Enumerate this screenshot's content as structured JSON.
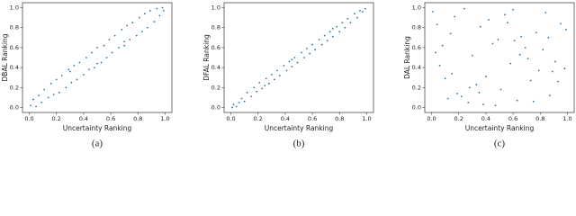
{
  "chart_data": [
    {
      "type": "scatter",
      "caption": "(a)",
      "xlabel": "Uncertainty Ranking",
      "ylabel": "DBAL Ranking",
      "color": "#1f77b4",
      "xlim": [
        -0.05,
        1.05
      ],
      "ylim": [
        -0.05,
        1.05
      ],
      "xticks": [
        {
          "value": 0,
          "label": "0.0"
        },
        {
          "value": 0.2,
          "label": "0.2"
        },
        {
          "value": 0.4,
          "label": "0.4"
        },
        {
          "value": 0.6,
          "label": "0.6"
        },
        {
          "value": 0.8,
          "label": "0.8"
        },
        {
          "value": 1,
          "label": "1.0"
        }
      ],
      "yticks": [
        {
          "value": 0,
          "label": "0.0"
        },
        {
          "value": 0.2,
          "label": "0.2"
        },
        {
          "value": 0.4,
          "label": "0.4"
        },
        {
          "value": 0.6,
          "label": "0.6"
        },
        {
          "value": 0.8,
          "label": "0.8"
        },
        {
          "value": 1,
          "label": "1.0"
        }
      ],
      "x": [
        0.01,
        0.03,
        0.05,
        0.07,
        0.09,
        0.11,
        0.14,
        0.16,
        0.18,
        0.2,
        0.22,
        0.24,
        0.27,
        0.29,
        0.31,
        0.33,
        0.35,
        0.37,
        0.4,
        0.42,
        0.44,
        0.46,
        0.48,
        0.5,
        0.53,
        0.55,
        0.57,
        0.59,
        0.61,
        0.63,
        0.66,
        0.68,
        0.7,
        0.72,
        0.74,
        0.76,
        0.79,
        0.81,
        0.83,
        0.85,
        0.87,
        0.89,
        0.92,
        0.94,
        0.96,
        0.98,
        0.99,
        0.5,
        0.3,
        0.7
      ],
      "y": [
        0.02,
        0.08,
        0.01,
        0.12,
        0.05,
        0.18,
        0.1,
        0.24,
        0.13,
        0.28,
        0.15,
        0.32,
        0.2,
        0.38,
        0.25,
        0.42,
        0.28,
        0.45,
        0.33,
        0.5,
        0.38,
        0.55,
        0.4,
        0.6,
        0.45,
        0.62,
        0.5,
        0.68,
        0.55,
        0.72,
        0.6,
        0.78,
        0.62,
        0.82,
        0.68,
        0.85,
        0.72,
        0.9,
        0.76,
        0.94,
        0.8,
        0.97,
        0.86,
        0.99,
        0.92,
        1.0,
        0.97,
        0.44,
        0.36,
        0.66
      ]
    },
    {
      "type": "scatter",
      "caption": "(b)",
      "xlabel": "Uncertainty Ranking",
      "ylabel": "DFAL Ranking",
      "color": "#1f77b4",
      "xlim": [
        -0.05,
        1.05
      ],
      "ylim": [
        -0.05,
        1.05
      ],
      "xticks": [
        {
          "value": 0,
          "label": "0.0"
        },
        {
          "value": 0.2,
          "label": "0.2"
        },
        {
          "value": 0.4,
          "label": "0.4"
        },
        {
          "value": 0.6,
          "label": "0.6"
        },
        {
          "value": 0.8,
          "label": "0.8"
        },
        {
          "value": 1,
          "label": "1.0"
        }
      ],
      "yticks": [
        {
          "value": 0,
          "label": "0.0"
        },
        {
          "value": 0.2,
          "label": "0.2"
        },
        {
          "value": 0.4,
          "label": "0.4"
        },
        {
          "value": 0.6,
          "label": "0.6"
        },
        {
          "value": 0.8,
          "label": "0.8"
        },
        {
          "value": 1,
          "label": "1.0"
        }
      ],
      "x": [
        0.01,
        0.02,
        0.04,
        0.06,
        0.08,
        0.1,
        0.12,
        0.15,
        0.17,
        0.19,
        0.21,
        0.23,
        0.26,
        0.28,
        0.3,
        0.32,
        0.34,
        0.36,
        0.39,
        0.41,
        0.43,
        0.45,
        0.47,
        0.49,
        0.52,
        0.54,
        0.56,
        0.58,
        0.6,
        0.62,
        0.65,
        0.67,
        0.69,
        0.71,
        0.73,
        0.75,
        0.78,
        0.8,
        0.82,
        0.84,
        0.86,
        0.88,
        0.91,
        0.93,
        0.95,
        0.97,
        0.99,
        0.45,
        0.25,
        0.75
      ],
      "y": [
        0.0,
        0.03,
        0.01,
        0.05,
        0.09,
        0.06,
        0.15,
        0.11,
        0.2,
        0.16,
        0.25,
        0.19,
        0.29,
        0.24,
        0.33,
        0.28,
        0.37,
        0.32,
        0.42,
        0.37,
        0.46,
        0.41,
        0.5,
        0.45,
        0.55,
        0.5,
        0.59,
        0.54,
        0.63,
        0.58,
        0.68,
        0.63,
        0.72,
        0.67,
        0.76,
        0.71,
        0.81,
        0.76,
        0.85,
        0.8,
        0.89,
        0.85,
        0.94,
        0.9,
        0.97,
        0.96,
        0.99,
        0.48,
        0.22,
        0.79
      ]
    },
    {
      "type": "scatter",
      "caption": "(c)",
      "xlabel": "Uncertainty Ranking",
      "ylabel": "DAL Ranking",
      "color": "#1f77b4",
      "xlim": [
        -0.05,
        1.05
      ],
      "ylim": [
        -0.05,
        1.05
      ],
      "xticks": [
        {
          "value": 0,
          "label": "0.0"
        },
        {
          "value": 0.2,
          "label": "0.2"
        },
        {
          "value": 0.4,
          "label": "0.4"
        },
        {
          "value": 0.6,
          "label": "0.6"
        },
        {
          "value": 0.8,
          "label": "0.8"
        },
        {
          "value": 1,
          "label": "1.0"
        }
      ],
      "yticks": [
        {
          "value": 0,
          "label": "0.0"
        },
        {
          "value": 0.2,
          "label": "0.2"
        },
        {
          "value": 0.4,
          "label": "0.4"
        },
        {
          "value": 0.6,
          "label": "0.6"
        },
        {
          "value": 0.8,
          "label": "0.8"
        },
        {
          "value": 1,
          "label": "1.0"
        }
      ],
      "x": [
        0.03,
        0.87,
        0.42,
        0.15,
        0.66,
        0.91,
        0.27,
        0.54,
        0.08,
        0.73,
        0.36,
        0.98,
        0.19,
        0.61,
        0.47,
        0.82,
        0.01,
        0.33,
        0.77,
        0.58,
        0.12,
        0.95,
        0.4,
        0.69,
        0.24,
        0.51,
        0.86,
        0.06,
        0.63,
        0.3,
        0.93,
        0.45,
        0.17,
        0.79,
        0.56,
        0.22,
        0.71,
        0.38,
        0.99,
        0.1,
        0.49,
        0.84,
        0.28,
        0.65,
        0.04,
        0.89,
        0.35,
        0.6,
        0.14,
        0.75
      ],
      "y": [
        0.55,
        0.12,
        0.88,
        0.34,
        0.71,
        0.46,
        0.05,
        0.93,
        0.62,
        0.27,
        0.81,
        0.39,
        0.14,
        0.67,
        0.02,
        0.58,
        0.96,
        0.23,
        0.75,
        0.44,
        0.09,
        0.84,
        0.31,
        0.6,
        0.99,
        0.18,
        0.7,
        0.42,
        0.07,
        0.52,
        0.26,
        0.64,
        0.91,
        0.37,
        0.85,
        0.11,
        0.49,
        0.03,
        0.78,
        0.29,
        0.68,
        0.95,
        0.2,
        0.53,
        0.83,
        0.36,
        0.15,
        0.98,
        0.74,
        0.06
      ]
    }
  ]
}
